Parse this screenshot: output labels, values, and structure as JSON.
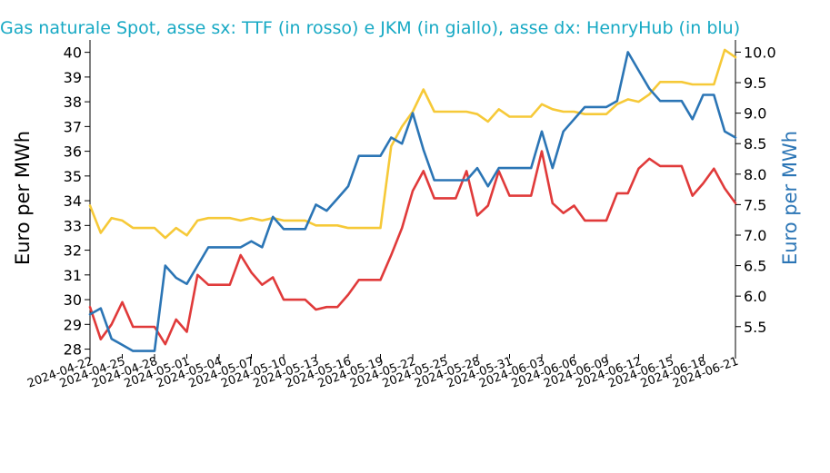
{
  "chart_data": {
    "type": "line",
    "title": "Gas naturale Spot, asse sx: TTF (in rosso) e JKM (in giallo), asse dx: HenryHub (in blu)",
    "ylabel_left": "Euro per MWh",
    "ylabel_right": "Euro per MWh",
    "ylim_left": [
      27.8,
      40.5
    ],
    "ylim_right": [
      5.05,
      10.2
    ],
    "yticks_left": [
      28,
      29,
      30,
      31,
      32,
      33,
      34,
      35,
      36,
      37,
      38,
      39,
      40
    ],
    "yticks_right": [
      5.5,
      6.0,
      6.5,
      7.0,
      7.5,
      8.0,
      8.5,
      9.0,
      9.5,
      10.0
    ],
    "xtick_labels": [
      "2024-04-22",
      "2024-04-25",
      "2024-04-28",
      "2024-05-01",
      "2024-05-04",
      "2024-05-07",
      "2024-05-10",
      "2024-05-13",
      "2024-05-16",
      "2024-05-19",
      "2024-05-22",
      "2024-05-25",
      "2024-05-28",
      "2024-05-31",
      "2024-06-03",
      "2024-06-06",
      "2024-06-09",
      "2024-06-12",
      "2024-06-15",
      "2024-06-18",
      "2024-06-21"
    ],
    "x_start": "2024-04-22",
    "x_end": "2024-06-21",
    "colors": {
      "ttf": "#e03a3a",
      "jkm": "#f6c938",
      "henryhub": "#2b75b5"
    },
    "series": [
      {
        "axis": "left",
        "x": [
          "2024-04-22",
          "2024-04-23",
          "2024-04-24",
          "2024-04-25",
          "2024-04-26",
          "2024-04-27",
          "2024-04-28",
          "2024-04-29",
          "2024-04-30",
          "2024-05-01",
          "2024-05-02",
          "2024-05-03",
          "2024-05-04",
          "2024-05-05",
          "2024-05-06",
          "2024-05-07",
          "2024-05-08",
          "2024-05-09",
          "2024-05-10",
          "2024-05-11",
          "2024-05-12",
          "2024-05-13",
          "2024-05-14",
          "2024-05-15",
          "2024-05-16",
          "2024-05-17",
          "2024-05-18",
          "2024-05-19",
          "2024-05-20",
          "2024-05-21",
          "2024-05-22",
          "2024-05-23",
          "2024-05-24",
          "2024-05-25",
          "2024-05-26",
          "2024-05-27",
          "2024-05-28",
          "2024-05-29",
          "2024-05-30",
          "2024-05-31",
          "2024-06-01",
          "2024-06-02",
          "2024-06-03",
          "2024-06-04",
          "2024-06-05",
          "2024-06-06",
          "2024-06-07",
          "2024-06-08",
          "2024-06-09",
          "2024-06-10",
          "2024-06-11",
          "2024-06-12",
          "2024-06-13",
          "2024-06-14",
          "2024-06-15",
          "2024-06-16",
          "2024-06-17",
          "2024-06-18",
          "2024-06-19",
          "2024-06-20",
          "2024-06-21"
        ],
        "values": [
          29.7,
          28.4,
          29.0,
          29.9,
          28.9,
          28.9,
          28.9,
          28.2,
          29.2,
          28.7,
          31.0,
          30.6,
          30.6,
          30.6,
          31.8,
          31.1,
          30.6,
          30.9,
          30.0,
          30.0,
          30.0,
          29.6,
          29.7,
          29.7,
          30.2,
          30.8,
          30.8,
          30.8,
          31.8,
          32.9,
          34.4,
          35.2,
          34.1,
          34.1,
          34.1,
          35.2,
          33.4,
          33.8,
          35.2,
          34.2,
          34.2,
          34.2,
          36.0,
          33.9,
          33.5,
          33.8,
          33.2,
          33.2,
          33.2,
          34.3,
          34.3,
          35.3,
          35.7,
          35.4,
          35.4,
          35.4,
          34.2,
          34.7,
          35.3,
          34.5,
          33.9
        ]
      },
      {
        "axis": "left",
        "x": [
          "2024-04-22",
          "2024-04-23",
          "2024-04-24",
          "2024-04-25",
          "2024-04-26",
          "2024-04-27",
          "2024-04-28",
          "2024-04-29",
          "2024-04-30",
          "2024-05-01",
          "2024-05-02",
          "2024-05-03",
          "2024-05-04",
          "2024-05-05",
          "2024-05-06",
          "2024-05-07",
          "2024-05-08",
          "2024-05-09",
          "2024-05-10",
          "2024-05-11",
          "2024-05-12",
          "2024-05-13",
          "2024-05-14",
          "2024-05-15",
          "2024-05-16",
          "2024-05-17",
          "2024-05-18",
          "2024-05-19",
          "2024-05-20",
          "2024-05-21",
          "2024-05-22",
          "2024-05-23",
          "2024-05-24",
          "2024-05-25",
          "2024-05-26",
          "2024-05-27",
          "2024-05-28",
          "2024-05-29",
          "2024-05-30",
          "2024-05-31",
          "2024-06-01",
          "2024-06-02",
          "2024-06-03",
          "2024-06-04",
          "2024-06-05",
          "2024-06-06",
          "2024-06-07",
          "2024-06-08",
          "2024-06-09",
          "2024-06-10",
          "2024-06-11",
          "2024-06-12",
          "2024-06-13",
          "2024-06-14",
          "2024-06-15",
          "2024-06-16",
          "2024-06-17",
          "2024-06-18",
          "2024-06-19",
          "2024-06-20",
          "2024-06-21"
        ],
        "values": [
          33.8,
          32.7,
          33.3,
          33.2,
          32.9,
          32.9,
          32.9,
          32.5,
          32.9,
          32.6,
          33.2,
          33.3,
          33.3,
          33.3,
          33.2,
          33.3,
          33.2,
          33.3,
          33.2,
          33.2,
          33.2,
          33.0,
          33.0,
          33.0,
          32.9,
          32.9,
          32.9,
          32.9,
          36.2,
          37.0,
          37.6,
          38.5,
          37.6,
          37.6,
          37.6,
          37.6,
          37.5,
          37.2,
          37.7,
          37.4,
          37.4,
          37.4,
          37.9,
          37.7,
          37.6,
          37.6,
          37.5,
          37.5,
          37.5,
          37.9,
          38.1,
          38.0,
          38.3,
          38.8,
          38.8,
          38.8,
          38.7,
          38.7,
          38.7,
          40.1,
          39.8
        ]
      },
      {
        "axis": "right",
        "x": [
          "2024-04-22",
          "2024-04-23",
          "2024-04-24",
          "2024-04-25",
          "2024-04-26",
          "2024-04-27",
          "2024-04-28",
          "2024-04-29",
          "2024-04-30",
          "2024-05-01",
          "2024-05-02",
          "2024-05-03",
          "2024-05-04",
          "2024-05-05",
          "2024-05-06",
          "2024-05-07",
          "2024-05-08",
          "2024-05-09",
          "2024-05-10",
          "2024-05-11",
          "2024-05-12",
          "2024-05-13",
          "2024-05-14",
          "2024-05-15",
          "2024-05-16",
          "2024-05-17",
          "2024-05-18",
          "2024-05-19",
          "2024-05-20",
          "2024-05-21",
          "2024-05-22",
          "2024-05-23",
          "2024-05-24",
          "2024-05-25",
          "2024-05-26",
          "2024-05-27",
          "2024-05-28",
          "2024-05-29",
          "2024-05-30",
          "2024-05-31",
          "2024-06-01",
          "2024-06-02",
          "2024-06-03",
          "2024-06-04",
          "2024-06-05",
          "2024-06-06",
          "2024-06-07",
          "2024-06-08",
          "2024-06-09",
          "2024-06-10",
          "2024-06-11",
          "2024-06-12",
          "2024-06-13",
          "2024-06-14",
          "2024-06-15",
          "2024-06-16",
          "2024-06-17",
          "2024-06-18",
          "2024-06-19",
          "2024-06-20",
          "2024-06-21"
        ],
        "values": [
          5.7,
          5.8,
          5.3,
          5.2,
          5.1,
          5.1,
          5.1,
          6.5,
          6.3,
          6.2,
          6.5,
          6.8,
          6.8,
          6.8,
          6.8,
          6.9,
          6.8,
          7.3,
          7.1,
          7.1,
          7.1,
          7.5,
          7.4,
          7.6,
          7.8,
          8.3,
          8.3,
          8.3,
          8.6,
          8.5,
          9.0,
          8.4,
          7.9,
          7.9,
          7.9,
          7.9,
          8.1,
          7.8,
          8.1,
          8.1,
          8.1,
          8.1,
          8.7,
          8.1,
          8.7,
          8.9,
          9.1,
          9.1,
          9.1,
          9.2,
          10.0,
          9.7,
          9.4,
          9.2,
          9.2,
          9.2,
          8.9,
          9.3,
          9.3,
          8.7,
          8.6
        ]
      }
    ]
  }
}
